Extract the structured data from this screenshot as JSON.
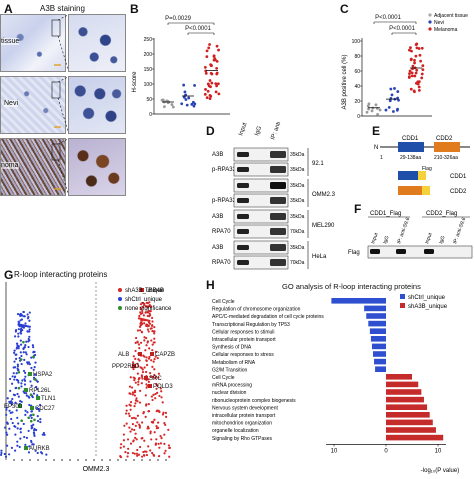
{
  "panelA": {
    "letter": "A",
    "title": "A3B staining",
    "rows": [
      "tissue",
      "Nevi",
      "noma"
    ]
  },
  "panelB": {
    "letter": "B",
    "p1": "P=0.0029",
    "p2": "P<0.0001",
    "ylabel": "H-score",
    "yticks": [
      "0",
      "50",
      "100",
      "150",
      "200",
      "250"
    ]
  },
  "panelC": {
    "letter": "C",
    "p1": "P<0.0001",
    "p2": "P<0.0001",
    "ylabel": "A3B positive cell (%)",
    "yticks": [
      "0",
      "20",
      "40",
      "60",
      "80",
      "100"
    ],
    "legend": [
      "Adjacent tissue",
      "Nevi",
      "Melanoma"
    ]
  },
  "panelD": {
    "letter": "D",
    "cols": [
      "Input",
      "IgG",
      "IP: anti-S9.6"
    ],
    "groups": [
      {
        "cell": "92.1",
        "rows": [
          {
            "name": "A3B",
            "kda": "35kDa"
          },
          {
            "name": "p-RPA32",
            "kda": "35kDa"
          }
        ]
      },
      {
        "cell": "OMM2.3",
        "rows": [
          {
            "name": "",
            "kda": "35kDa"
          },
          {
            "name": "p-RPA32",
            "kda": "35kDa"
          }
        ]
      },
      {
        "cell": "MEL290",
        "rows": [
          {
            "name": "A3B",
            "kda": "35kDa"
          },
          {
            "name": "RPA70",
            "kda": "70kDa"
          }
        ]
      },
      {
        "cell": "HeLa",
        "rows": [
          {
            "name": "A3B",
            "kda": "35kDa"
          },
          {
            "name": "RPA70",
            "kda": "70kDa"
          }
        ]
      }
    ]
  },
  "panelE": {
    "letter": "E",
    "n": "N",
    "one": "1",
    "cdd1": "CDD1",
    "cdd2": "CDD2",
    "range1": "29-138aa",
    "range2": "210-326aa",
    "flag": "Flag",
    "constructs": [
      "CDD1",
      "CDD2"
    ]
  },
  "panelF": {
    "letter": "F",
    "groups": [
      "CDD1_Flag",
      "CDD2_Flag"
    ],
    "lanes": [
      "Input",
      "IgG",
      "IP: anti-S9.6",
      "Input",
      "IgG",
      "IP: anti-S9.6"
    ],
    "rowlabel": "Flag"
  },
  "panelG": {
    "letter": "G",
    "title": "R-loop interacting proteins",
    "legend": [
      "shA3B_unique",
      "shCtrl_unique",
      "none significance"
    ],
    "genes_left": [
      "HSPA2",
      "RPL26L",
      "TLN1",
      "EP300",
      "CDC27",
      "AURKB"
    ],
    "genes_right": [
      "TBB4B",
      "ALB",
      "CAPZB",
      "PPP2R5D",
      "SRC",
      "POLD3"
    ],
    "xlabel": "OMM2.3",
    "colors": {
      "shA3B": "#d62728",
      "shCtrl": "#2a3fd1",
      "none": "#2e8b2e"
    }
  },
  "panelH": {
    "letter": "H",
    "title": "GO analysis of R-loop interacting proteins",
    "legend": [
      "shCtrl_unique",
      "shA3B_unique"
    ],
    "xlabel": "-log₁₀(P value)",
    "xticks": [
      "10",
      "0",
      "10"
    ],
    "colors": {
      "shCtrl": "#2e4fcf",
      "shA3B": "#c62b2b"
    }
  },
  "chart_data": [
    {
      "type": "bar",
      "title": "GO analysis of R-loop interacting proteins",
      "xlabel": "-log10(P value)",
      "series": [
        {
          "name": "shCtrl_unique",
          "categories": [
            "Cell Cycle",
            "Regulation of chromosome organization",
            "APC/C-mediated degradation of cell cycle proteins",
            "Transcriptional Regulation by TP53",
            "Cellular responses to stimuli",
            "Intracellular protein transport",
            "Synthesis of DNA",
            "Cellular responses to stress",
            "Metabolism of RNA",
            "G2/M Transition"
          ],
          "values": [
            10.5,
            4.2,
            3.8,
            3.4,
            3.1,
            2.9,
            2.7,
            2.5,
            2.3,
            2.1
          ]
        },
        {
          "name": "shA3B_unique",
          "categories": [
            "Cell Cycle",
            "mRNA processing",
            "nuclear division",
            "ribonucleoprotein complex biogenesis",
            "Nervous system development",
            "intracellular protein transport",
            "mitochondrion organization",
            "organelle localization",
            "Signaling by Rho GTPases"
          ],
          "values": [
            5.0,
            6.2,
            6.8,
            7.3,
            7.9,
            8.4,
            9.0,
            9.6,
            11.0
          ]
        }
      ]
    }
  ]
}
